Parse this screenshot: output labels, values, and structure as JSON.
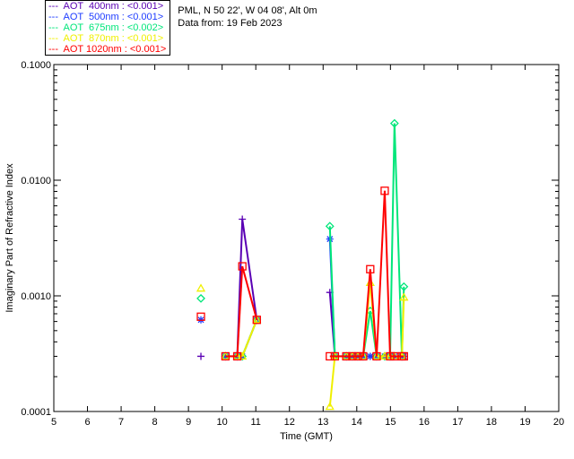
{
  "header": {
    "location": "PML, N 50 22', W 04 08', Alt 0m",
    "date": "Data from: 19 Feb 2023"
  },
  "legend": [
    {
      "label": "---  AOT  400nm : <0.001>",
      "color": "#5a00b4"
    },
    {
      "label": "---  AOT  500nm : <0.001>",
      "color": "#1e3cff"
    },
    {
      "label": "---  AOT  675nm : <0.002>",
      "color": "#00e67a"
    },
    {
      "label": "---  AOT  870nm : <0.001>",
      "color": "#f0f000"
    },
    {
      "label": "---  AOT 1020nm : <0.001>",
      "color": "#ff0000"
    }
  ],
  "chart_data": {
    "type": "line",
    "xlabel": "Time (GMT)",
    "ylabel": "Imaginary Part of Refractive Index",
    "xlim": [
      5,
      20
    ],
    "ylim": [
      0.0001,
      0.1
    ],
    "yscale": "log",
    "xticks": [
      "5",
      "6",
      "7",
      "8",
      "9",
      "10",
      "11",
      "12",
      "13",
      "14",
      "15",
      "16",
      "17",
      "18",
      "19",
      "20"
    ],
    "yticks": [
      "0.0001",
      "0.0010",
      "0.0100",
      "0.1000"
    ],
    "x": [
      9.37,
      10.1,
      10.45,
      10.6,
      11.03,
      13.2,
      13.35,
      13.69,
      13.87,
      14.03,
      14.19,
      14.4,
      14.59,
      14.83,
      14.99,
      15.12,
      15.34,
      15.4
    ],
    "series": [
      {
        "name": "AOT 400nm",
        "marker": "plus",
        "values": [
          0.0003,
          0.0003,
          0.0003,
          0.0046,
          0.00062,
          0.00107,
          0.0003,
          0.0003,
          0.0003,
          0.0003,
          0.0003,
          0.0003,
          0.0003,
          0.0003,
          0.0003,
          0.0003,
          0.0003,
          0.0003
        ]
      },
      {
        "name": "AOT 500nm",
        "marker": "asterisk",
        "values": [
          0.00062,
          0.0003,
          0.0003,
          0.0003,
          0.00062,
          0.0031,
          0.0003,
          0.0003,
          0.0003,
          0.0003,
          0.0003,
          0.0003,
          0.0003,
          0.0003,
          0.0003,
          0.0003,
          0.0003,
          0.0003
        ]
      },
      {
        "name": "AOT 675nm",
        "marker": "diamond",
        "values": [
          0.00095,
          0.0003,
          0.0003,
          0.0003,
          0.00062,
          0.004,
          0.0003,
          0.0003,
          0.0003,
          0.0003,
          0.0003,
          0.00074,
          0.0003,
          0.0003,
          0.0003,
          0.031,
          0.0003,
          0.0012
        ]
      },
      {
        "name": "AOT 870nm",
        "marker": "triangle",
        "values": [
          0.00116,
          0.0003,
          0.0003,
          0.0003,
          0.00062,
          0.00011,
          0.0003,
          0.0003,
          0.0003,
          0.0003,
          0.0003,
          0.0013,
          0.0003,
          0.0003,
          0.0003,
          0.0003,
          0.0003,
          0.00097
        ]
      },
      {
        "name": "AOT 1020nm",
        "marker": "square",
        "values": [
          0.00066,
          0.0003,
          0.0003,
          0.0018,
          0.00062,
          0.0003,
          0.0003,
          0.0003,
          0.0003,
          0.0003,
          0.0003,
          0.0017,
          0.0003,
          0.0081,
          0.0003,
          0.0003,
          0.0003,
          0.0003
        ]
      }
    ]
  }
}
